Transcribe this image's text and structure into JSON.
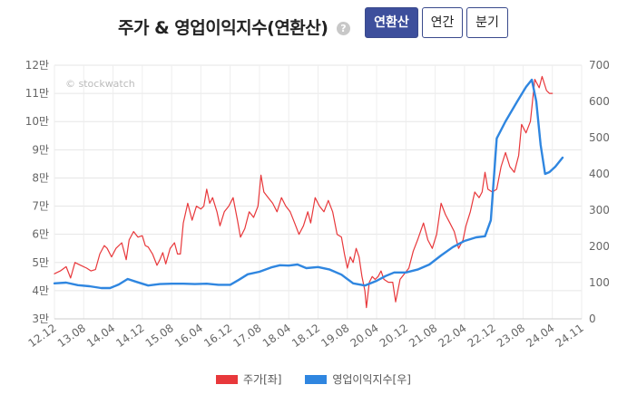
{
  "header": {
    "title": "주가 & 영업이익지수(연환산)",
    "help": "?",
    "buttons": [
      {
        "label": "연환산",
        "active": true
      },
      {
        "label": "연간",
        "active": false
      },
      {
        "label": "분기",
        "active": false
      }
    ]
  },
  "watermark": "© stockwatch",
  "chart_data": {
    "type": "line",
    "y_left": {
      "ticks": [
        "3만",
        "4만",
        "5만",
        "6만",
        "7만",
        "8만",
        "9만",
        "10만",
        "11만",
        "12만"
      ],
      "range": [
        3,
        12
      ]
    },
    "y_right": {
      "ticks": [
        "0",
        "100",
        "200",
        "300",
        "400",
        "500",
        "600",
        "700"
      ],
      "range": [
        0,
        700
      ]
    },
    "x_ticks": [
      "12.12",
      "13.08",
      "14.04",
      "14.12",
      "15.08",
      "16.04",
      "16.12",
      "17.08",
      "18.04",
      "18.12",
      "19.08",
      "20.04",
      "20.12",
      "21.08",
      "22.04",
      "22.12",
      "23.08",
      "24.04",
      "24.11"
    ],
    "x_range": [
      0,
      18
    ],
    "grid": true,
    "series": [
      {
        "name": "주가[좌]",
        "color": "#e8383b",
        "axis": "left",
        "points": [
          [
            0,
            4.6
          ],
          [
            0.2,
            4.7
          ],
          [
            0.4,
            4.85
          ],
          [
            0.55,
            4.45
          ],
          [
            0.7,
            5.0
          ],
          [
            0.9,
            4.9
          ],
          [
            1.1,
            4.8
          ],
          [
            1.25,
            4.7
          ],
          [
            1.4,
            4.75
          ],
          [
            1.55,
            5.3
          ],
          [
            1.7,
            5.6
          ],
          [
            1.8,
            5.5
          ],
          [
            1.95,
            5.2
          ],
          [
            2.1,
            5.5
          ],
          [
            2.3,
            5.7
          ],
          [
            2.45,
            5.1
          ],
          [
            2.55,
            5.8
          ],
          [
            2.7,
            6.1
          ],
          [
            2.85,
            5.9
          ],
          [
            3.0,
            5.95
          ],
          [
            3.1,
            5.6
          ],
          [
            3.2,
            5.55
          ],
          [
            3.35,
            5.3
          ],
          [
            3.5,
            4.9
          ],
          [
            3.6,
            5.1
          ],
          [
            3.7,
            5.35
          ],
          [
            3.8,
            4.95
          ],
          [
            3.95,
            5.5
          ],
          [
            4.1,
            5.7
          ],
          [
            4.2,
            5.3
          ],
          [
            4.3,
            5.3
          ],
          [
            4.4,
            6.4
          ],
          [
            4.55,
            7.1
          ],
          [
            4.7,
            6.5
          ],
          [
            4.85,
            7.0
          ],
          [
            5.0,
            6.9
          ],
          [
            5.1,
            7.0
          ],
          [
            5.2,
            7.6
          ],
          [
            5.3,
            7.1
          ],
          [
            5.4,
            7.3
          ],
          [
            5.55,
            6.8
          ],
          [
            5.65,
            6.3
          ],
          [
            5.8,
            6.8
          ],
          [
            5.95,
            7.0
          ],
          [
            6.1,
            7.3
          ],
          [
            6.25,
            6.5
          ],
          [
            6.35,
            5.9
          ],
          [
            6.5,
            6.2
          ],
          [
            6.65,
            6.8
          ],
          [
            6.8,
            6.6
          ],
          [
            6.95,
            7.0
          ],
          [
            7.05,
            8.1
          ],
          [
            7.15,
            7.5
          ],
          [
            7.3,
            7.3
          ],
          [
            7.45,
            7.1
          ],
          [
            7.6,
            6.8
          ],
          [
            7.75,
            7.3
          ],
          [
            7.9,
            7.0
          ],
          [
            8.05,
            6.8
          ],
          [
            8.2,
            6.4
          ],
          [
            8.35,
            6.0
          ],
          [
            8.5,
            6.3
          ],
          [
            8.65,
            6.8
          ],
          [
            8.75,
            6.4
          ],
          [
            8.9,
            7.3
          ],
          [
            9.05,
            7.0
          ],
          [
            9.2,
            6.8
          ],
          [
            9.35,
            7.2
          ],
          [
            9.5,
            6.8
          ],
          [
            9.65,
            6.0
          ],
          [
            9.8,
            5.9
          ],
          [
            9.9,
            5.3
          ],
          [
            10.0,
            4.8
          ],
          [
            10.1,
            5.2
          ],
          [
            10.2,
            5.0
          ],
          [
            10.3,
            5.5
          ],
          [
            10.4,
            5.2
          ],
          [
            10.5,
            4.5
          ],
          [
            10.6,
            4.0
          ],
          [
            10.65,
            3.4
          ],
          [
            10.75,
            4.3
          ],
          [
            10.85,
            4.5
          ],
          [
            10.95,
            4.4
          ],
          [
            11.05,
            4.5
          ],
          [
            11.15,
            4.7
          ],
          [
            11.25,
            4.4
          ],
          [
            11.4,
            4.3
          ],
          [
            11.55,
            4.3
          ],
          [
            11.65,
            3.6
          ],
          [
            11.8,
            4.4
          ],
          [
            11.95,
            4.6
          ],
          [
            12.1,
            4.8
          ],
          [
            12.25,
            5.4
          ],
          [
            12.4,
            5.8
          ],
          [
            12.6,
            6.4
          ],
          [
            12.75,
            5.8
          ],
          [
            12.9,
            5.5
          ],
          [
            13.05,
            6.0
          ],
          [
            13.2,
            7.1
          ],
          [
            13.35,
            6.7
          ],
          [
            13.5,
            6.4
          ],
          [
            13.65,
            6.1
          ],
          [
            13.8,
            5.5
          ],
          [
            13.95,
            5.8
          ],
          [
            14.05,
            6.3
          ],
          [
            14.2,
            6.8
          ],
          [
            14.35,
            7.5
          ],
          [
            14.5,
            7.3
          ],
          [
            14.6,
            7.5
          ],
          [
            14.7,
            8.2
          ],
          [
            14.8,
            7.6
          ],
          [
            14.95,
            7.5
          ],
          [
            15.1,
            7.6
          ],
          [
            15.25,
            8.4
          ],
          [
            15.4,
            8.9
          ],
          [
            15.55,
            8.4
          ],
          [
            15.7,
            8.2
          ],
          [
            15.85,
            8.8
          ],
          [
            15.95,
            9.9
          ],
          [
            16.1,
            9.6
          ],
          [
            16.25,
            10.0
          ],
          [
            16.4,
            11.5
          ],
          [
            16.55,
            11.2
          ],
          [
            16.65,
            11.6
          ],
          [
            16.8,
            11.1
          ],
          [
            16.9,
            11.0
          ],
          [
            17.0,
            11.0
          ]
        ]
      },
      {
        "name": "영업이익지수[우]",
        "color": "#2f86e0",
        "axis": "right",
        "points": [
          [
            0,
            98
          ],
          [
            0.4,
            100
          ],
          [
            0.8,
            93
          ],
          [
            1.2,
            90
          ],
          [
            1.6,
            85
          ],
          [
            1.9,
            85
          ],
          [
            2.2,
            95
          ],
          [
            2.5,
            110
          ],
          [
            2.8,
            102
          ],
          [
            3.2,
            92
          ],
          [
            3.6,
            96
          ],
          [
            4.0,
            97
          ],
          [
            4.4,
            97
          ],
          [
            4.8,
            96
          ],
          [
            5.2,
            97
          ],
          [
            5.6,
            94
          ],
          [
            6.0,
            94
          ],
          [
            6.3,
            108
          ],
          [
            6.6,
            123
          ],
          [
            7.0,
            130
          ],
          [
            7.4,
            142
          ],
          [
            7.7,
            148
          ],
          [
            8.0,
            147
          ],
          [
            8.3,
            150
          ],
          [
            8.6,
            140
          ],
          [
            9.0,
            143
          ],
          [
            9.4,
            136
          ],
          [
            9.8,
            122
          ],
          [
            10.2,
            98
          ],
          [
            10.6,
            92
          ],
          [
            11.0,
            105
          ],
          [
            11.3,
            118
          ],
          [
            11.6,
            128
          ],
          [
            12.0,
            128
          ],
          [
            12.4,
            136
          ],
          [
            12.8,
            150
          ],
          [
            13.2,
            175
          ],
          [
            13.6,
            198
          ],
          [
            14.0,
            215
          ],
          [
            14.4,
            225
          ],
          [
            14.7,
            228
          ],
          [
            14.9,
            272
          ],
          [
            15.1,
            498
          ],
          [
            15.4,
            545
          ],
          [
            15.8,
            600
          ],
          [
            16.1,
            640
          ],
          [
            16.3,
            660
          ],
          [
            16.45,
            600
          ],
          [
            16.6,
            480
          ],
          [
            16.75,
            400
          ],
          [
            16.9,
            405
          ],
          [
            17.1,
            420
          ],
          [
            17.35,
            445
          ]
        ]
      }
    ]
  }
}
